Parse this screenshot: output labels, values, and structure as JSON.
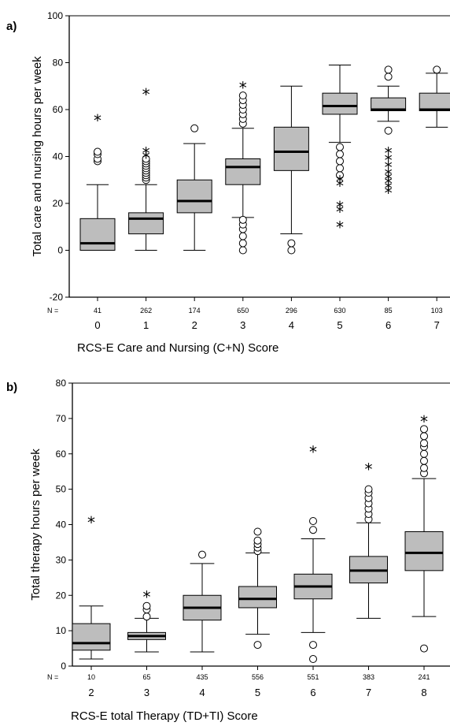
{
  "chart_data": [
    {
      "panel_label": "a)",
      "type": "box",
      "title": "",
      "ylabel": "Total care and nursing hours per week",
      "xlabel": "RCS-E Care and Nursing (C+N) Score",
      "ylim": [
        -20,
        100
      ],
      "yticks": [
        -20,
        0,
        20,
        40,
        60,
        80,
        100
      ],
      "n_prefix": "N =",
      "categories": [
        "0",
        "1",
        "2",
        "3",
        "4",
        "5",
        "6",
        "7"
      ],
      "n": [
        "41",
        "262",
        "174",
        "650",
        "296",
        "630",
        "85",
        "103"
      ],
      "boxes": [
        {
          "low": 0,
          "q1": 0,
          "median": 3,
          "q3": 13.5,
          "high": 28,
          "outliers": [
            38,
            39,
            41,
            42
          ],
          "extremes": [
            56
          ]
        },
        {
          "low": 0,
          "q1": 7,
          "median": 13.5,
          "q3": 16,
          "high": 28,
          "outliers": [
            30,
            31,
            32,
            33,
            34,
            35,
            36,
            37,
            38,
            39
          ],
          "extremes": [
            40,
            42,
            67
          ]
        },
        {
          "low": 0,
          "q1": 16,
          "median": 21,
          "q3": 30,
          "high": 45.5,
          "outliers": [
            52
          ],
          "extremes": []
        },
        {
          "low": 14,
          "q1": 28,
          "median": 35.5,
          "q3": 39,
          "high": 52,
          "outliers": [
            0,
            3,
            6,
            9,
            11,
            13,
            54,
            56,
            58,
            60,
            62,
            64,
            66
          ],
          "extremes": [
            70
          ]
        },
        {
          "low": 7,
          "q1": 34,
          "median": 42,
          "q3": 52.5,
          "high": 70,
          "outliers": [
            0,
            3
          ],
          "extremes": []
        },
        {
          "low": 46,
          "q1": 58,
          "median": 61.5,
          "q3": 67,
          "high": 79,
          "outliers": [
            32,
            35,
            38,
            41,
            44
          ],
          "extremes": [
            10.5,
            17,
            19,
            28,
            30
          ]
        },
        {
          "low": 55,
          "q1": 59.5,
          "median": 60,
          "q3": 65,
          "high": 70,
          "outliers": [
            51,
            74,
            77
          ],
          "extremes": [
            25,
            27,
            29,
            31,
            33,
            36,
            39,
            42
          ]
        },
        {
          "low": 52.5,
          "q1": 59.5,
          "median": 60,
          "q3": 67,
          "high": 75.5,
          "outliers": [
            77
          ],
          "extremes": []
        }
      ]
    },
    {
      "panel_label": "b)",
      "type": "box",
      "title": "",
      "ylabel": "Total therapy hours per week",
      "xlabel": "RCS-E total Therapy (TD+TI) Score",
      "ylim": [
        0,
        80
      ],
      "yticks": [
        0,
        10,
        20,
        30,
        40,
        50,
        60,
        70,
        80
      ],
      "n_prefix": "N =",
      "categories": [
        "2",
        "3",
        "4",
        "5",
        "6",
        "7",
        "8"
      ],
      "n": [
        "10",
        "65",
        "435",
        "556",
        "551",
        "383",
        "241"
      ],
      "boxes": [
        {
          "low": 2,
          "q1": 4.5,
          "median": 6.5,
          "q3": 12,
          "high": 17,
          "outliers": [],
          "extremes": [
            41
          ]
        },
        {
          "low": 4,
          "q1": 7.5,
          "median": 8.5,
          "q3": 9.5,
          "high": 13.5,
          "outliers": [
            14,
            16,
            17
          ],
          "extremes": [
            20
          ]
        },
        {
          "low": 4,
          "q1": 13,
          "median": 16.5,
          "q3": 20,
          "high": 29,
          "outliers": [
            31.5
          ],
          "extremes": []
        },
        {
          "low": 9,
          "q1": 16.5,
          "median": 19,
          "q3": 22.5,
          "high": 32,
          "outliers": [
            6,
            32.5,
            33.5,
            34.5,
            35.5,
            38
          ],
          "extremes": []
        },
        {
          "low": 9.5,
          "q1": 19,
          "median": 22.5,
          "q3": 26,
          "high": 36,
          "outliers": [
            2,
            6,
            38.5,
            41
          ],
          "extremes": [
            61
          ]
        },
        {
          "low": 13.5,
          "q1": 23.5,
          "median": 27,
          "q3": 31,
          "high": 40.5,
          "outliers": [
            41.5,
            43,
            44.5,
            46,
            47.5,
            49,
            50
          ],
          "extremes": [
            56
          ]
        },
        {
          "low": 14,
          "q1": 27,
          "median": 32,
          "q3": 38,
          "high": 53,
          "outliers": [
            5,
            54.5,
            56,
            58,
            60,
            62,
            63,
            65,
            67
          ],
          "extremes": [
            69.5
          ]
        }
      ]
    }
  ]
}
